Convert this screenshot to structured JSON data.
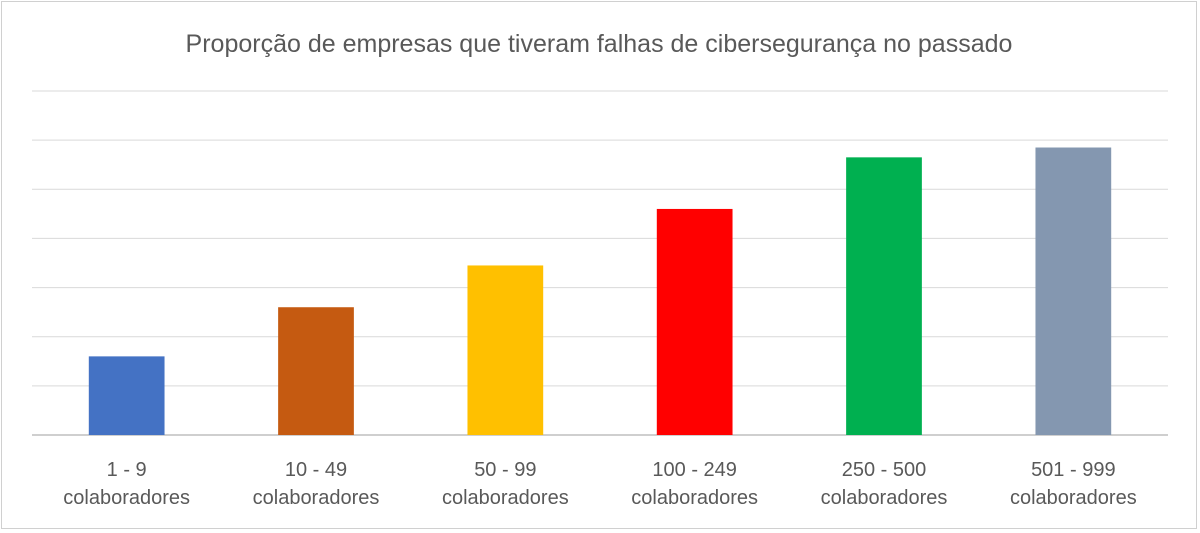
{
  "chart_data": {
    "type": "bar",
    "title": "Proporção de empresas que tiveram falhas de cibersegurança no passado",
    "xlabel": "",
    "ylabel": "",
    "categories": [
      [
        "1 - 9",
        "colaboradores"
      ],
      [
        "10 - 49",
        "colaboradores"
      ],
      [
        "50 - 99",
        "colaboradores"
      ],
      [
        "100 - 249",
        "colaboradores"
      ],
      [
        "250 - 500",
        "colaboradores"
      ],
      [
        "501 - 999",
        "colaboradores"
      ]
    ],
    "values": [
      16,
      26,
      34.5,
      46,
      56.5,
      58.5
    ],
    "ylim": [
      0,
      70
    ],
    "gridlines": [
      0,
      10,
      20,
      30,
      40,
      50,
      60,
      70
    ],
    "grid": true,
    "y_tick_labels_visible": false,
    "legend": "none",
    "colors": [
      "#4472C4",
      "#C55A11",
      "#FFC000",
      "#FF0000",
      "#00B050",
      "#8497B0"
    ],
    "grid_color": "#d9d9d9",
    "axis_color": "#bfbfbf"
  }
}
